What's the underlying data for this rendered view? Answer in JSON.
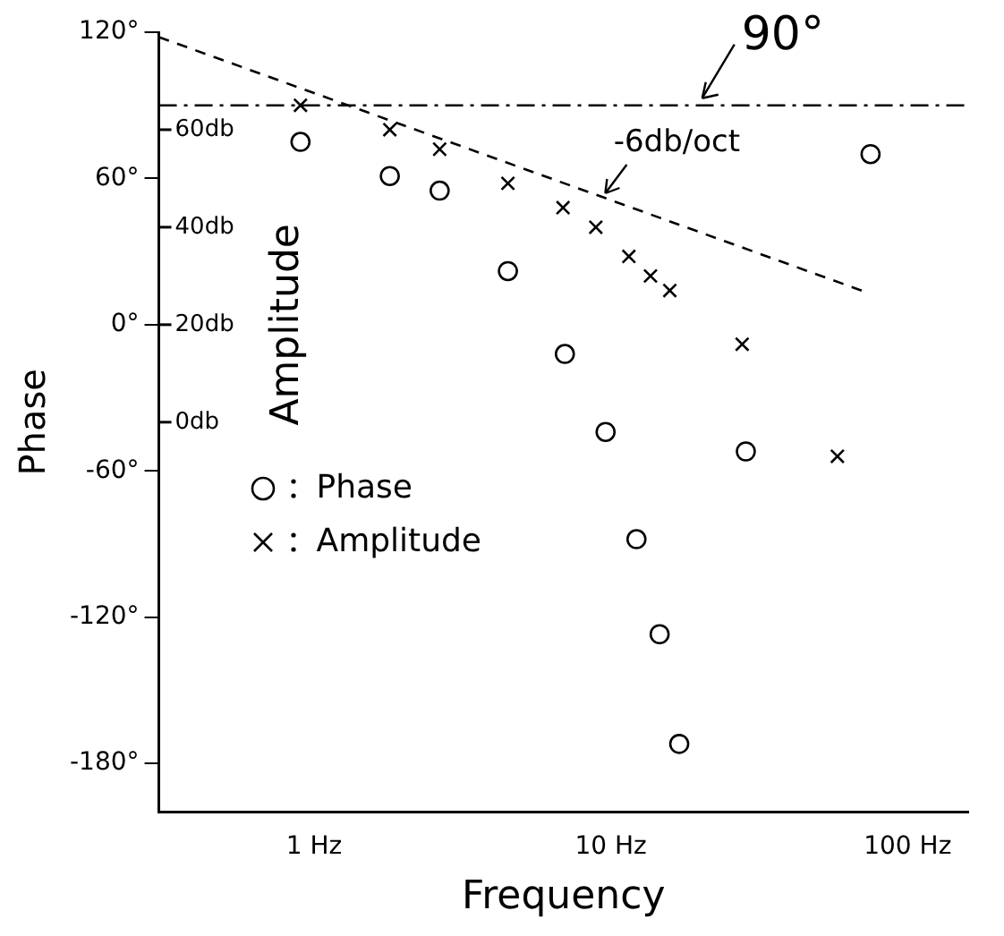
{
  "chart_data": {
    "type": "scatter",
    "xlabel": "Frequency",
    "ylabel": "Phase",
    "y2label": "Amplitude",
    "log": "x",
    "grid": false,
    "legend": "left",
    "xlim": [
      0.3,
      160
    ],
    "xticks": [
      {
        "value": 1,
        "label": "1 Hz"
      },
      {
        "value": 10,
        "label": "10 Hz"
      },
      {
        "value": 100,
        "label": "100 Hz"
      }
    ],
    "ylim": [
      -200,
      120
    ],
    "yticks": [
      {
        "value": 120,
        "label": "120°"
      },
      {
        "value": 60,
        "label": "60°"
      },
      {
        "value": 0,
        "label": "0°"
      },
      {
        "value": -60,
        "label": "-60°"
      },
      {
        "value": -120,
        "label": "-120°"
      },
      {
        "value": -180,
        "label": "-180°"
      }
    ],
    "y2lim": [
      -80,
      80
    ],
    "y2ticks": [
      {
        "value": 60,
        "label": "60db"
      },
      {
        "value": 40,
        "label": "40db"
      },
      {
        "value": 20,
        "label": "20db"
      },
      {
        "value": 0,
        "label": "0db"
      }
    ],
    "series": [
      {
        "name": "Phase",
        "type": "scatter",
        "marker": "circle",
        "color": "#000000",
        "x": [
          0.9,
          1.8,
          2.65,
          4.5,
          7,
          9.6,
          12.2,
          14.6,
          17,
          28.5,
          75
        ],
        "values": [
          75,
          61,
          55,
          22,
          -12,
          -44,
          -88,
          -127,
          -172,
          -52,
          70
        ]
      },
      {
        "name": "Amplitude",
        "type": "scatter",
        "axis": "y2",
        "marker": "cross",
        "color": "#000000",
        "x": [
          0.9,
          1.8,
          2.65,
          4.5,
          6.9,
          8.9,
          11.5,
          13.6,
          15.8,
          27.7,
          58
        ],
        "values": [
          65,
          60,
          56,
          49,
          44,
          40,
          34,
          30,
          27,
          16,
          -7
        ]
      },
      {
        "type": "line",
        "axis": "y2",
        "line_style": "dashed",
        "marker": "none",
        "color": "#000000",
        "x": [
          0.3,
          70
        ],
        "values": [
          79,
          27
        ]
      }
    ],
    "ref_lines": [
      {
        "axis": "y",
        "value": 90,
        "label": "90°",
        "line_style": "dashdot",
        "color": "#000000"
      }
    ],
    "annotations": [
      "-6db/oct"
    ]
  }
}
